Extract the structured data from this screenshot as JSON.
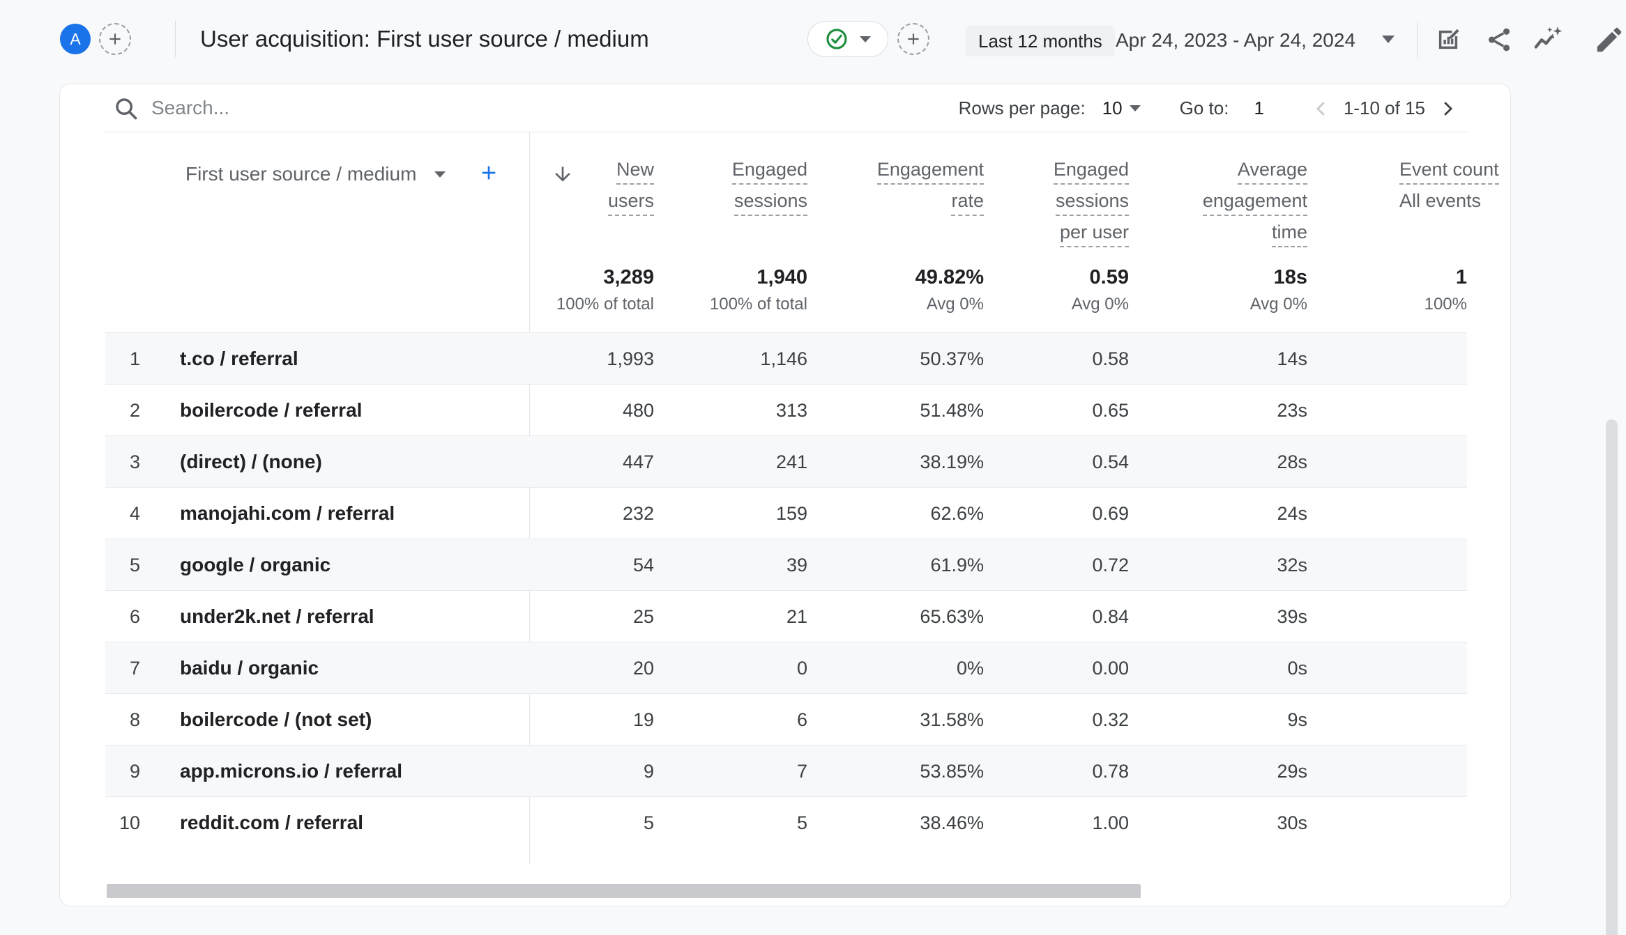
{
  "colors": {
    "accent_blue": "#1a73e8",
    "approved_green": "#1e8e3e",
    "page_bg": "#f8f9fa",
    "text_primary": "#202124",
    "text_secondary": "#5f6368"
  },
  "topbar": {
    "avatar_text": "A",
    "title": "User acquisition: First user source / medium",
    "approval_icon": "check-circle-icon",
    "date_preset_label": "Last 12 months",
    "date_range": "Apr 24, 2023 - Apr 24, 2024",
    "action_icons": [
      "edit-chart-icon",
      "share-icon",
      "insights-icon",
      "edit-pencil-icon"
    ]
  },
  "controls": {
    "search_placeholder": "Search...",
    "rows_per_page_label": "Rows per page:",
    "rows_per_page_value": "10",
    "goto_label": "Go to:",
    "goto_value": "1",
    "range_label": "1-10 of 15"
  },
  "table": {
    "dimension_header": "First user source / medium",
    "columns": [
      {
        "label": "New users",
        "lines": [
          "New",
          "users"
        ],
        "total": "3,289",
        "total_sub": "100% of total"
      },
      {
        "label": "Engaged sessions",
        "lines": [
          "Engaged",
          "sessions"
        ],
        "total": "1,940",
        "total_sub": "100% of total"
      },
      {
        "label": "Engagement rate",
        "lines": [
          "Engagement",
          "rate"
        ],
        "total": "49.82%",
        "total_sub": "Avg 0%"
      },
      {
        "label": "Engaged sessions per user",
        "lines": [
          "Engaged",
          "sessions",
          "per user"
        ],
        "total": "0.59",
        "total_sub": "Avg 0%"
      },
      {
        "label": "Average engagement time",
        "lines": [
          "Average",
          "engagement",
          "time"
        ],
        "total": "18s",
        "total_sub": "Avg 0%"
      },
      {
        "label": "Event count",
        "lines": [
          "Event count"
        ],
        "sub_line": "All events",
        "total": "1",
        "total_sub": "100%",
        "clipped": true
      }
    ],
    "rows": [
      {
        "index": "1",
        "dimension": "t.co / referral",
        "values": [
          "1,993",
          "1,146",
          "50.37%",
          "0.58",
          "14s"
        ]
      },
      {
        "index": "2",
        "dimension": "boilercode / referral",
        "values": [
          "480",
          "313",
          "51.48%",
          "0.65",
          "23s"
        ]
      },
      {
        "index": "3",
        "dimension": "(direct) / (none)",
        "values": [
          "447",
          "241",
          "38.19%",
          "0.54",
          "28s"
        ]
      },
      {
        "index": "4",
        "dimension": "manojahi.com / referral",
        "values": [
          "232",
          "159",
          "62.6%",
          "0.69",
          "24s"
        ]
      },
      {
        "index": "5",
        "dimension": "google / organic",
        "values": [
          "54",
          "39",
          "61.9%",
          "0.72",
          "32s"
        ]
      },
      {
        "index": "6",
        "dimension": "under2k.net / referral",
        "values": [
          "25",
          "21",
          "65.63%",
          "0.84",
          "39s"
        ]
      },
      {
        "index": "7",
        "dimension": "baidu / organic",
        "values": [
          "20",
          "0",
          "0%",
          "0.00",
          "0s"
        ]
      },
      {
        "index": "8",
        "dimension": "boilercode / (not set)",
        "values": [
          "19",
          "6",
          "31.58%",
          "0.32",
          "9s"
        ]
      },
      {
        "index": "9",
        "dimension": "app.microns.io / referral",
        "values": [
          "9",
          "7",
          "53.85%",
          "0.78",
          "29s"
        ]
      },
      {
        "index": "10",
        "dimension": "reddit.com / referral",
        "values": [
          "5",
          "5",
          "38.46%",
          "1.00",
          "30s"
        ]
      }
    ]
  }
}
